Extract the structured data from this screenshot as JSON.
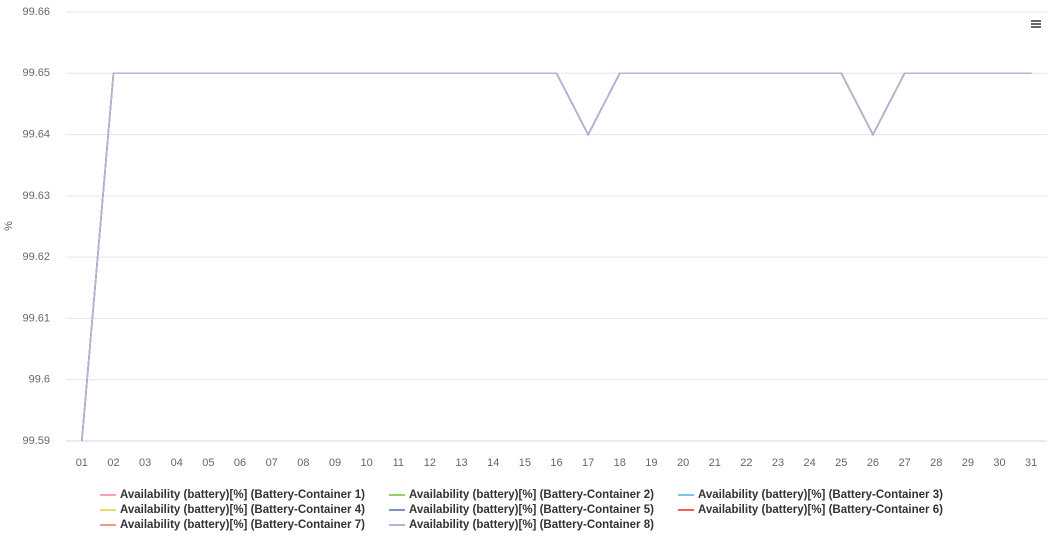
{
  "chart_data": {
    "type": "line",
    "y_label": "%",
    "categories": [
      "01",
      "02",
      "03",
      "04",
      "05",
      "06",
      "07",
      "08",
      "09",
      "10",
      "11",
      "12",
      "13",
      "14",
      "15",
      "16",
      "17",
      "18",
      "19",
      "20",
      "21",
      "22",
      "23",
      "24",
      "25",
      "26",
      "27",
      "28",
      "29",
      "30",
      "31"
    ],
    "series": [
      {
        "name": "Availability (battery)[%] (Battery-Container 1)",
        "color": "#f4a3b4",
        "values": [
          99.59,
          99.65,
          99.65,
          99.65,
          99.65,
          99.65,
          99.65,
          99.65,
          99.65,
          99.65,
          99.65,
          99.65,
          99.65,
          99.65,
          99.65,
          99.65,
          99.64,
          99.65,
          99.65,
          99.65,
          99.65,
          99.65,
          99.65,
          99.65,
          99.65,
          99.64,
          99.65,
          99.65,
          99.65,
          99.65,
          99.65
        ]
      },
      {
        "name": "Availability (battery)[%] (Battery-Container 2)",
        "color": "#8fd16a",
        "values": [
          99.59,
          99.65,
          99.65,
          99.65,
          99.65,
          99.65,
          99.65,
          99.65,
          99.65,
          99.65,
          99.65,
          99.65,
          99.65,
          99.65,
          99.65,
          99.65,
          99.64,
          99.65,
          99.65,
          99.65,
          99.65,
          99.65,
          99.65,
          99.65,
          99.65,
          99.64,
          99.65,
          99.65,
          99.65,
          99.65,
          99.65
        ]
      },
      {
        "name": "Availability (battery)[%] (Battery-Container 3)",
        "color": "#7cc4ea",
        "values": [
          99.59,
          99.65,
          99.65,
          99.65,
          99.65,
          99.65,
          99.65,
          99.65,
          99.65,
          99.65,
          99.65,
          99.65,
          99.65,
          99.65,
          99.65,
          99.65,
          99.64,
          99.65,
          99.65,
          99.65,
          99.65,
          99.65,
          99.65,
          99.65,
          99.65,
          99.64,
          99.65,
          99.65,
          99.65,
          99.65,
          99.65
        ]
      },
      {
        "name": "Availability (battery)[%] (Battery-Container 4)",
        "color": "#f5d76e",
        "values": [
          99.59,
          99.65,
          99.65,
          99.65,
          99.65,
          99.65,
          99.65,
          99.65,
          99.65,
          99.65,
          99.65,
          99.65,
          99.65,
          99.65,
          99.65,
          99.65,
          99.64,
          99.65,
          99.65,
          99.65,
          99.65,
          99.65,
          99.65,
          99.65,
          99.65,
          99.64,
          99.65,
          99.65,
          99.65,
          99.65,
          99.65
        ]
      },
      {
        "name": "Availability (battery)[%] (Battery-Container 5)",
        "color": "#7f8fc6",
        "values": [
          99.59,
          99.65,
          99.65,
          99.65,
          99.65,
          99.65,
          99.65,
          99.65,
          99.65,
          99.65,
          99.65,
          99.65,
          99.65,
          99.65,
          99.65,
          99.65,
          99.64,
          99.65,
          99.65,
          99.65,
          99.65,
          99.65,
          99.65,
          99.65,
          99.65,
          99.64,
          99.65,
          99.65,
          99.65,
          99.65,
          99.65
        ]
      },
      {
        "name": "Availability (battery)[%] (Battery-Container 6)",
        "color": "#f06050",
        "values": [
          99.59,
          99.65,
          99.65,
          99.65,
          99.65,
          99.65,
          99.65,
          99.65,
          99.65,
          99.65,
          99.65,
          99.65,
          99.65,
          99.65,
          99.65,
          99.65,
          99.64,
          99.65,
          99.65,
          99.65,
          99.65,
          99.65,
          99.65,
          99.65,
          99.65,
          99.64,
          99.65,
          99.65,
          99.65,
          99.65,
          99.65
        ]
      },
      {
        "name": "Availability (battery)[%] (Battery-Container 7)",
        "color": "#f29a7e",
        "values": [
          99.59,
          99.65,
          99.65,
          99.65,
          99.65,
          99.65,
          99.65,
          99.65,
          99.65,
          99.65,
          99.65,
          99.65,
          99.65,
          99.65,
          99.65,
          99.65,
          99.64,
          99.65,
          99.65,
          99.65,
          99.65,
          99.65,
          99.65,
          99.65,
          99.65,
          99.64,
          99.65,
          99.65,
          99.65,
          99.65,
          99.65
        ]
      },
      {
        "name": "Availability (battery)[%] (Battery-Container 8)",
        "color": "#b7b0dc",
        "values": [
          99.59,
          99.65,
          99.65,
          99.65,
          99.65,
          99.65,
          99.65,
          99.65,
          99.65,
          99.65,
          99.65,
          99.65,
          99.65,
          99.65,
          99.65,
          99.65,
          99.64,
          99.65,
          99.65,
          99.65,
          99.65,
          99.65,
          99.65,
          99.65,
          99.65,
          99.64,
          99.65,
          99.65,
          99.65,
          99.65,
          99.65
        ]
      }
    ],
    "ylim": [
      99.59,
      99.66
    ],
    "yticks": [
      99.59,
      99.6,
      99.61,
      99.62,
      99.63,
      99.64,
      99.65,
      99.66
    ],
    "grid": true
  }
}
